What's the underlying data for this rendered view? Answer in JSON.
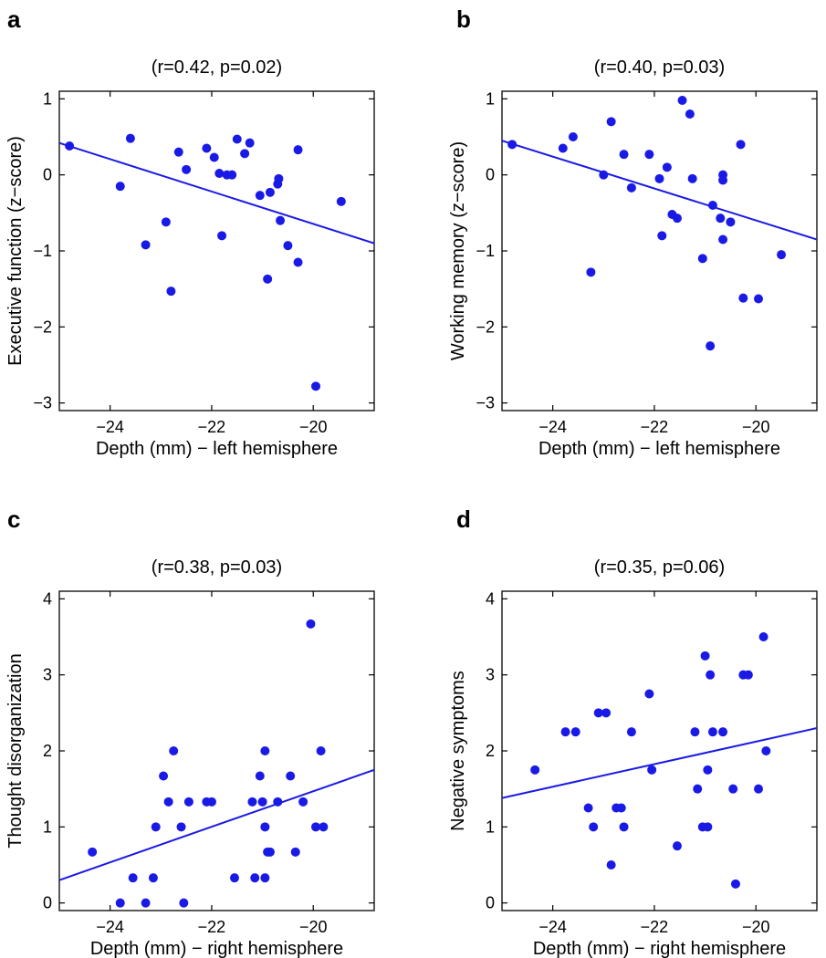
{
  "chart_data": [
    {
      "type": "scatter",
      "panel": "a",
      "title": "(r=0.42, p=0.02)",
      "xlabel": "Depth (mm) − left hemisphere",
      "ylabel": "Executive function (z−score)",
      "xlim": [
        -25,
        -18.8
      ],
      "ylim": [
        -3.1,
        1.1
      ],
      "xticks": [
        -24,
        -22,
        -20
      ],
      "xtick_labels": [
        "−24",
        "−22",
        "−20"
      ],
      "yticks": [
        -3,
        -2,
        -1,
        0,
        1
      ],
      "ytick_labels": [
        "−3",
        "−2",
        "−1",
        "0",
        "1"
      ],
      "fit_line": {
        "x": [
          -25,
          -18.8
        ],
        "y": [
          0.42,
          -0.9
        ]
      },
      "points": [
        {
          "x": -24.8,
          "y": 0.38
        },
        {
          "x": -23.8,
          "y": -0.15
        },
        {
          "x": -23.6,
          "y": 0.48
        },
        {
          "x": -23.3,
          "y": -0.92
        },
        {
          "x": -22.9,
          "y": -0.62
        },
        {
          "x": -22.8,
          "y": -1.53
        },
        {
          "x": -22.65,
          "y": 0.3
        },
        {
          "x": -22.5,
          "y": 0.07
        },
        {
          "x": -22.1,
          "y": 0.35
        },
        {
          "x": -21.95,
          "y": 0.23
        },
        {
          "x": -21.85,
          "y": 0.02
        },
        {
          "x": -21.8,
          "y": -0.8
        },
        {
          "x": -21.7,
          "y": 0.0
        },
        {
          "x": -21.6,
          "y": 0.0
        },
        {
          "x": -21.5,
          "y": 0.47
        },
        {
          "x": -21.35,
          "y": 0.28
        },
        {
          "x": -21.25,
          "y": 0.42
        },
        {
          "x": -21.05,
          "y": -0.27
        },
        {
          "x": -20.9,
          "y": -1.37
        },
        {
          "x": -20.85,
          "y": -0.23
        },
        {
          "x": -20.7,
          "y": -0.12
        },
        {
          "x": -20.68,
          "y": -0.05
        },
        {
          "x": -20.65,
          "y": -0.6
        },
        {
          "x": -20.5,
          "y": -0.93
        },
        {
          "x": -20.3,
          "y": 0.33
        },
        {
          "x": -20.3,
          "y": -1.15
        },
        {
          "x": -19.95,
          "y": -2.78
        },
        {
          "x": -19.45,
          "y": -0.35
        }
      ]
    },
    {
      "type": "scatter",
      "panel": "b",
      "title": "(r=0.40, p=0.03)",
      "xlabel": "Depth (mm) − left hemisphere",
      "ylabel": "Working memory (z−score)",
      "xlim": [
        -25,
        -18.8
      ],
      "ylim": [
        -3.1,
        1.1
      ],
      "xticks": [
        -24,
        -22,
        -20
      ],
      "xtick_labels": [
        "−24",
        "−22",
        "−20"
      ],
      "yticks": [
        -3,
        -2,
        -1,
        0,
        1
      ],
      "ytick_labels": [
        "−3",
        "−2",
        "−1",
        "0",
        "1"
      ],
      "fit_line": {
        "x": [
          -25,
          -18.8
        ],
        "y": [
          0.45,
          -0.85
        ]
      },
      "points": [
        {
          "x": -24.8,
          "y": 0.4
        },
        {
          "x": -23.8,
          "y": 0.35
        },
        {
          "x": -23.6,
          "y": 0.5
        },
        {
          "x": -23.25,
          "y": -1.28
        },
        {
          "x": -23.0,
          "y": 0.0
        },
        {
          "x": -22.85,
          "y": 0.7
        },
        {
          "x": -22.6,
          "y": 0.27
        },
        {
          "x": -22.45,
          "y": -0.17
        },
        {
          "x": -22.1,
          "y": 0.27
        },
        {
          "x": -21.9,
          "y": -0.05
        },
        {
          "x": -21.85,
          "y": -0.8
        },
        {
          "x": -21.75,
          "y": 0.1
        },
        {
          "x": -21.65,
          "y": -0.52
        },
        {
          "x": -21.55,
          "y": -0.57
        },
        {
          "x": -21.45,
          "y": 0.98
        },
        {
          "x": -21.3,
          "y": 0.8
        },
        {
          "x": -21.25,
          "y": -0.05
        },
        {
          "x": -21.05,
          "y": -1.1
        },
        {
          "x": -20.9,
          "y": -2.25
        },
        {
          "x": -20.85,
          "y": -0.4
        },
        {
          "x": -20.7,
          "y": -0.57
        },
        {
          "x": -20.65,
          "y": 0.0
        },
        {
          "x": -20.65,
          "y": -0.07
        },
        {
          "x": -20.65,
          "y": -0.85
        },
        {
          "x": -20.5,
          "y": -0.62
        },
        {
          "x": -20.3,
          "y": 0.4
        },
        {
          "x": -20.25,
          "y": -1.62
        },
        {
          "x": -19.95,
          "y": -1.63
        },
        {
          "x": -19.5,
          "y": -1.05
        }
      ]
    },
    {
      "type": "scatter",
      "panel": "c",
      "title": "(r=0.38, p=0.03)",
      "xlabel": "Depth (mm) − right hemisphere",
      "ylabel": "Thought disorganization",
      "xlim": [
        -25,
        -18.8
      ],
      "ylim": [
        -0.1,
        4.1
      ],
      "xticks": [
        -24,
        -22,
        -20
      ],
      "xtick_labels": [
        "−24",
        "−22",
        "−20"
      ],
      "yticks": [
        0,
        1,
        2,
        3,
        4
      ],
      "ytick_labels": [
        "0",
        "1",
        "2",
        "3",
        "4"
      ],
      "fit_line": {
        "x": [
          -25,
          -18.8
        ],
        "y": [
          0.3,
          1.75
        ]
      },
      "points": [
        {
          "x": -24.35,
          "y": 0.67
        },
        {
          "x": -23.8,
          "y": 0.0
        },
        {
          "x": -23.55,
          "y": 0.33
        },
        {
          "x": -23.3,
          "y": 0.0
        },
        {
          "x": -23.15,
          "y": 0.33
        },
        {
          "x": -23.1,
          "y": 1.0
        },
        {
          "x": -22.95,
          "y": 1.67
        },
        {
          "x": -22.85,
          "y": 1.33
        },
        {
          "x": -22.75,
          "y": 2.0
        },
        {
          "x": -22.6,
          "y": 1.0
        },
        {
          "x": -22.55,
          "y": 0.0
        },
        {
          "x": -22.45,
          "y": 1.33
        },
        {
          "x": -22.1,
          "y": 1.33
        },
        {
          "x": -22.0,
          "y": 1.33
        },
        {
          "x": -21.55,
          "y": 0.33
        },
        {
          "x": -21.2,
          "y": 1.33
        },
        {
          "x": -21.15,
          "y": 0.33
        },
        {
          "x": -21.05,
          "y": 1.67
        },
        {
          "x": -21.0,
          "y": 1.33
        },
        {
          "x": -20.95,
          "y": 2.0
        },
        {
          "x": -20.95,
          "y": 1.0
        },
        {
          "x": -20.95,
          "y": 0.33
        },
        {
          "x": -20.9,
          "y": 0.67
        },
        {
          "x": -20.85,
          "y": 0.67
        },
        {
          "x": -20.7,
          "y": 1.33
        },
        {
          "x": -20.45,
          "y": 1.67
        },
        {
          "x": -20.35,
          "y": 0.67
        },
        {
          "x": -20.2,
          "y": 1.33
        },
        {
          "x": -20.05,
          "y": 3.67
        },
        {
          "x": -19.95,
          "y": 1.0
        },
        {
          "x": -19.85,
          "y": 2.0
        },
        {
          "x": -19.8,
          "y": 1.0
        }
      ]
    },
    {
      "type": "scatter",
      "panel": "d",
      "title": "(r=0.35, p=0.06)",
      "xlabel": "Depth (mm) − right hemisphere",
      "ylabel": "Negative symptoms",
      "xlim": [
        -25,
        -18.8
      ],
      "ylim": [
        -0.1,
        4.1
      ],
      "xticks": [
        -24,
        -22,
        -20
      ],
      "xtick_labels": [
        "−24",
        "−22",
        "−20"
      ],
      "yticks": [
        0,
        1,
        2,
        3,
        4
      ],
      "ytick_labels": [
        "0",
        "1",
        "2",
        "3",
        "4"
      ],
      "fit_line": {
        "x": [
          -25,
          -18.8
        ],
        "y": [
          1.38,
          2.3
        ]
      },
      "points": [
        {
          "x": -24.35,
          "y": 1.75
        },
        {
          "x": -23.75,
          "y": 2.25
        },
        {
          "x": -23.55,
          "y": 2.25
        },
        {
          "x": -23.3,
          "y": 1.25
        },
        {
          "x": -23.2,
          "y": 1.0
        },
        {
          "x": -23.1,
          "y": 2.5
        },
        {
          "x": -22.95,
          "y": 2.5
        },
        {
          "x": -22.85,
          "y": 0.5
        },
        {
          "x": -22.75,
          "y": 1.25
        },
        {
          "x": -22.65,
          "y": 1.25
        },
        {
          "x": -22.6,
          "y": 1.0
        },
        {
          "x": -22.45,
          "y": 2.25
        },
        {
          "x": -22.1,
          "y": 2.75
        },
        {
          "x": -22.05,
          "y": 1.75
        },
        {
          "x": -21.55,
          "y": 0.75
        },
        {
          "x": -21.2,
          "y": 2.25
        },
        {
          "x": -21.15,
          "y": 1.5
        },
        {
          "x": -21.05,
          "y": 1.0
        },
        {
          "x": -21.0,
          "y": 3.25
        },
        {
          "x": -20.95,
          "y": 1.75
        },
        {
          "x": -20.95,
          "y": 1.0
        },
        {
          "x": -20.9,
          "y": 3.0
        },
        {
          "x": -20.85,
          "y": 2.25
        },
        {
          "x": -20.65,
          "y": 2.25
        },
        {
          "x": -20.45,
          "y": 1.5
        },
        {
          "x": -20.4,
          "y": 0.25
        },
        {
          "x": -20.25,
          "y": 3.0
        },
        {
          "x": -20.15,
          "y": 3.0
        },
        {
          "x": -19.95,
          "y": 1.5
        },
        {
          "x": -19.85,
          "y": 3.5
        },
        {
          "x": -19.8,
          "y": 2.0
        }
      ]
    }
  ]
}
